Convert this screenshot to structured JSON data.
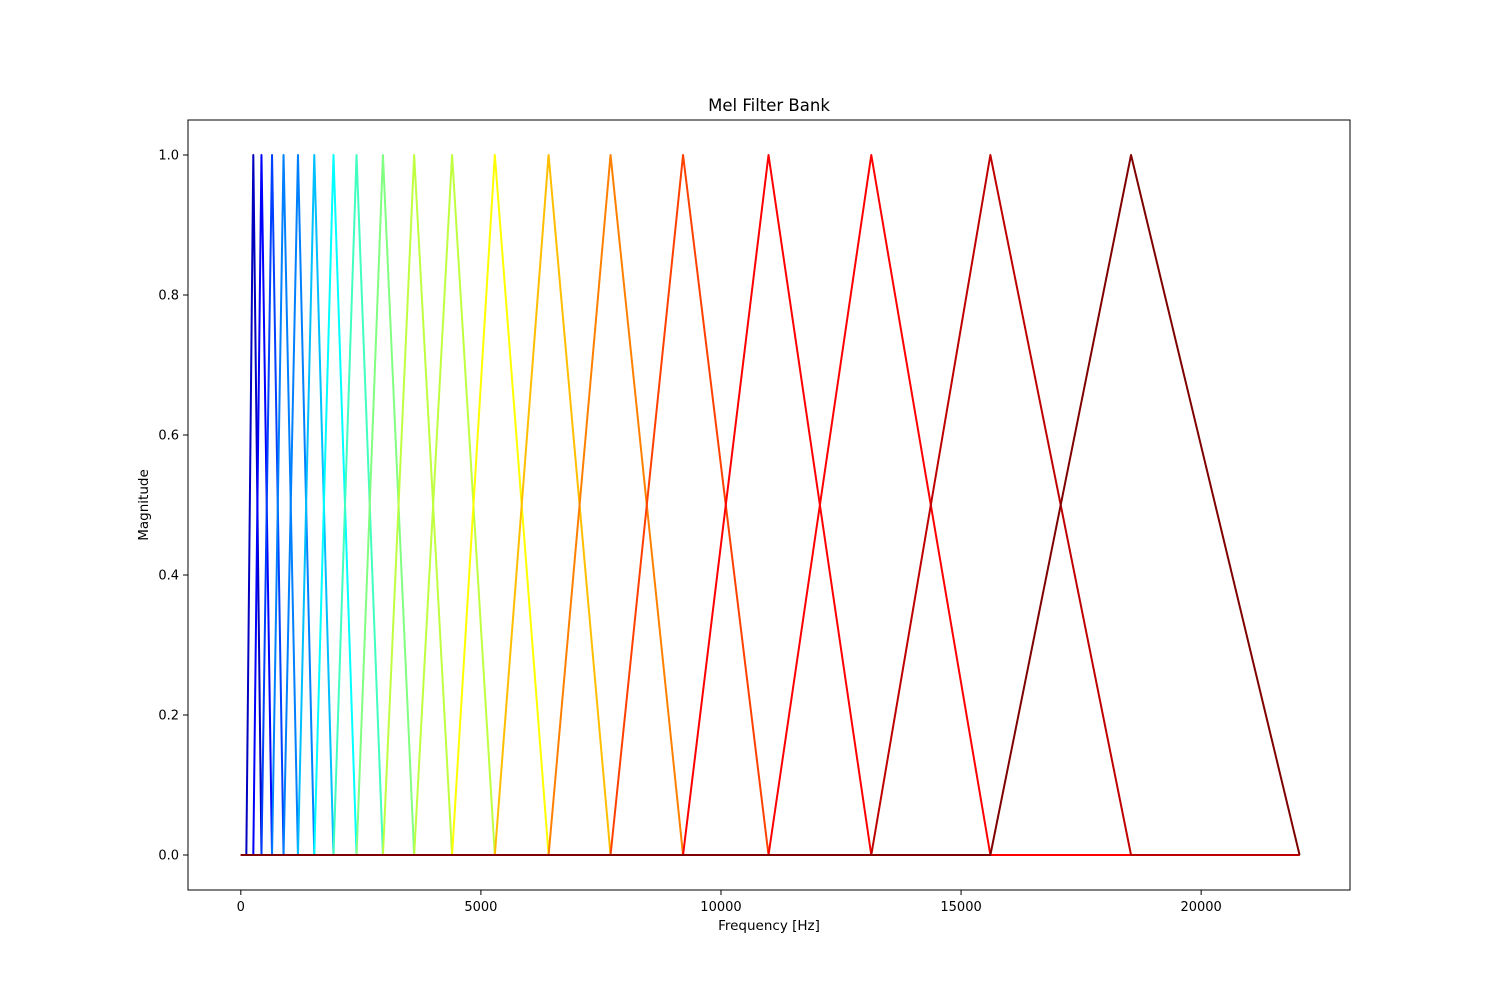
{
  "chart_data": {
    "type": "line",
    "title": "Mel Filter Bank",
    "xlabel": "Frequency [Hz]",
    "ylabel": "Magnitude",
    "xlim": [
      -1100,
      23100
    ],
    "ylim": [
      -0.05,
      1.05
    ],
    "xticks": [
      0,
      5000,
      10000,
      15000,
      20000
    ],
    "xtick_labels": [
      "0",
      "5000",
      "10000",
      "15000",
      "20000"
    ],
    "yticks": [
      0.0,
      0.2,
      0.4,
      0.6,
      0.8,
      1.0
    ],
    "ytick_labels": [
      "0.0",
      "0.2",
      "0.4",
      "0.6",
      "0.8",
      "1.0"
    ],
    "grid": false,
    "legend": "none",
    "x_range": [
      0,
      22050
    ],
    "colormap": "jet",
    "filter_edges_hz": [
      115,
      260,
      430,
      650,
      890,
      1190,
      1530,
      1930,
      2410,
      2960,
      3610,
      4400,
      5290,
      6410,
      7700,
      9210,
      10990,
      13130,
      15610,
      18540,
      22050
    ],
    "colors": [
      "#0000bf",
      "#0000ff",
      "#0040ff",
      "#0080ff",
      "#00bfff",
      "#00ffff",
      "#40ffbf",
      "#80ff80",
      "#bfff40",
      "#ffff00",
      "#ffbf00",
      "#ff8000",
      "#ff4000",
      "#ff0000",
      "#bf0000",
      "#800000"
    ],
    "series": [
      {
        "values": [
          [
            0,
            0
          ],
          [
            115,
            0
          ],
          [
            260,
            1
          ],
          [
            430,
            0
          ],
          [
            22050,
            0
          ]
        ]
      },
      {
        "values": [
          [
            0,
            0
          ],
          [
            260,
            0
          ],
          [
            430,
            1
          ],
          [
            650,
            0
          ],
          [
            22050,
            0
          ]
        ]
      },
      {
        "values": [
          [
            0,
            0
          ],
          [
            430,
            0
          ],
          [
            650,
            1
          ],
          [
            890,
            0
          ],
          [
            22050,
            0
          ]
        ]
      },
      {
        "values": [
          [
            0,
            0
          ],
          [
            650,
            0
          ],
          [
            890,
            1
          ],
          [
            1190,
            0
          ],
          [
            22050,
            0
          ]
        ]
      },
      {
        "values": [
          [
            0,
            0
          ],
          [
            890,
            0
          ],
          [
            1190,
            1
          ],
          [
            1530,
            0
          ],
          [
            22050,
            0
          ]
        ]
      },
      {
        "values": [
          [
            0,
            0
          ],
          [
            1190,
            0
          ],
          [
            1530,
            1
          ],
          [
            1930,
            0
          ],
          [
            22050,
            0
          ]
        ]
      },
      {
        "values": [
          [
            0,
            0
          ],
          [
            1530,
            0
          ],
          [
            1930,
            1
          ],
          [
            2410,
            0
          ],
          [
            22050,
            0
          ]
        ]
      },
      {
        "values": [
          [
            0,
            0
          ],
          [
            1930,
            0
          ],
          [
            2410,
            1
          ],
          [
            2960,
            0
          ],
          [
            22050,
            0
          ]
        ]
      },
      {
        "values": [
          [
            0,
            0
          ],
          [
            2410,
            0
          ],
          [
            2960,
            1
          ],
          [
            3610,
            0
          ],
          [
            22050,
            0
          ]
        ]
      },
      {
        "values": [
          [
            0,
            0
          ],
          [
            2960,
            0
          ],
          [
            3610,
            1
          ],
          [
            4400,
            0
          ],
          [
            22050,
            0
          ]
        ]
      },
      {
        "values": [
          [
            0,
            0
          ],
          [
            3610,
            0
          ],
          [
            4400,
            1
          ],
          [
            5290,
            0
          ],
          [
            22050,
            0
          ]
        ]
      },
      {
        "values": [
          [
            0,
            0
          ],
          [
            4400,
            0
          ],
          [
            5290,
            1
          ],
          [
            6410,
            0
          ],
          [
            22050,
            0
          ]
        ]
      },
      {
        "values": [
          [
            0,
            0
          ],
          [
            5290,
            0
          ],
          [
            6410,
            1
          ],
          [
            7700,
            0
          ],
          [
            22050,
            0
          ]
        ]
      },
      {
        "values": [
          [
            0,
            0
          ],
          [
            6410,
            0
          ],
          [
            7700,
            1
          ],
          [
            9210,
            0
          ],
          [
            22050,
            0
          ]
        ]
      },
      {
        "values": [
          [
            0,
            0
          ],
          [
            7700,
            0
          ],
          [
            9210,
            1
          ],
          [
            10990,
            0
          ],
          [
            22050,
            0
          ]
        ]
      },
      {
        "values": [
          [
            0,
            0
          ],
          [
            9210,
            0
          ],
          [
            10990,
            1
          ],
          [
            13130,
            0
          ],
          [
            22050,
            0
          ]
        ]
      },
      {
        "values": [
          [
            0,
            0
          ],
          [
            10990,
            0
          ],
          [
            13130,
            1
          ],
          [
            15610,
            0
          ],
          [
            22050,
            0
          ]
        ]
      },
      {
        "values": [
          [
            0,
            0
          ],
          [
            13130,
            0
          ],
          [
            15610,
            1
          ],
          [
            18540,
            0
          ],
          [
            22050,
            0
          ]
        ]
      },
      {
        "values": [
          [
            0,
            0
          ],
          [
            15610,
            0
          ],
          [
            18540,
            1
          ],
          [
            22050,
            0
          ]
        ]
      }
    ]
  }
}
